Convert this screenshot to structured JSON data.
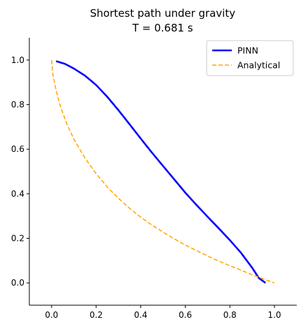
{
  "chart_data": {
    "type": "line",
    "title": "Shortest path under gravity",
    "subtitle": "T = 0.681 s",
    "xlabel": "",
    "ylabel": "",
    "xlim": [
      -0.1,
      1.1
    ],
    "ylim": [
      -0.1,
      1.1
    ],
    "xticks": [
      0.0,
      0.2,
      0.4,
      0.6,
      0.8,
      1.0
    ],
    "yticks": [
      0.0,
      0.2,
      0.4,
      0.6,
      0.8,
      1.0
    ],
    "xtick_labels": [
      "0.0",
      "0.2",
      "0.4",
      "0.6",
      "0.8",
      "1.0"
    ],
    "ytick_labels": [
      "0.0",
      "0.2",
      "0.4",
      "0.6",
      "0.8",
      "1.0"
    ],
    "grid": false,
    "legend_position": "top-right",
    "series": [
      {
        "name": "PINN",
        "color": "#0000ff",
        "style": "solid",
        "x": [
          0.02,
          0.06,
          0.1,
          0.15,
          0.2,
          0.25,
          0.3,
          0.35,
          0.4,
          0.45,
          0.5,
          0.55,
          0.6,
          0.65,
          0.7,
          0.75,
          0.8,
          0.85,
          0.9,
          0.93,
          0.96
        ],
        "y": [
          0.995,
          0.983,
          0.962,
          0.93,
          0.888,
          0.835,
          0.775,
          0.712,
          0.648,
          0.585,
          0.525,
          0.465,
          0.405,
          0.35,
          0.297,
          0.245,
          0.192,
          0.135,
          0.068,
          0.022,
          0.0
        ]
      },
      {
        "name": "Analytical",
        "color": "#ffa500",
        "style": "dashed",
        "x": [
          0.0,
          0.005,
          0.02,
          0.04,
          0.07,
          0.1,
          0.15,
          0.2,
          0.25,
          0.3,
          0.35,
          0.4,
          0.45,
          0.5,
          0.55,
          0.6,
          0.65,
          0.7,
          0.75,
          0.8,
          0.85,
          0.9,
          0.95,
          1.0
        ],
        "y": [
          1.0,
          0.94,
          0.865,
          0.79,
          0.71,
          0.645,
          0.56,
          0.49,
          0.43,
          0.38,
          0.335,
          0.295,
          0.26,
          0.228,
          0.198,
          0.17,
          0.145,
          0.121,
          0.098,
          0.077,
          0.057,
          0.037,
          0.018,
          0.0
        ]
      }
    ]
  }
}
